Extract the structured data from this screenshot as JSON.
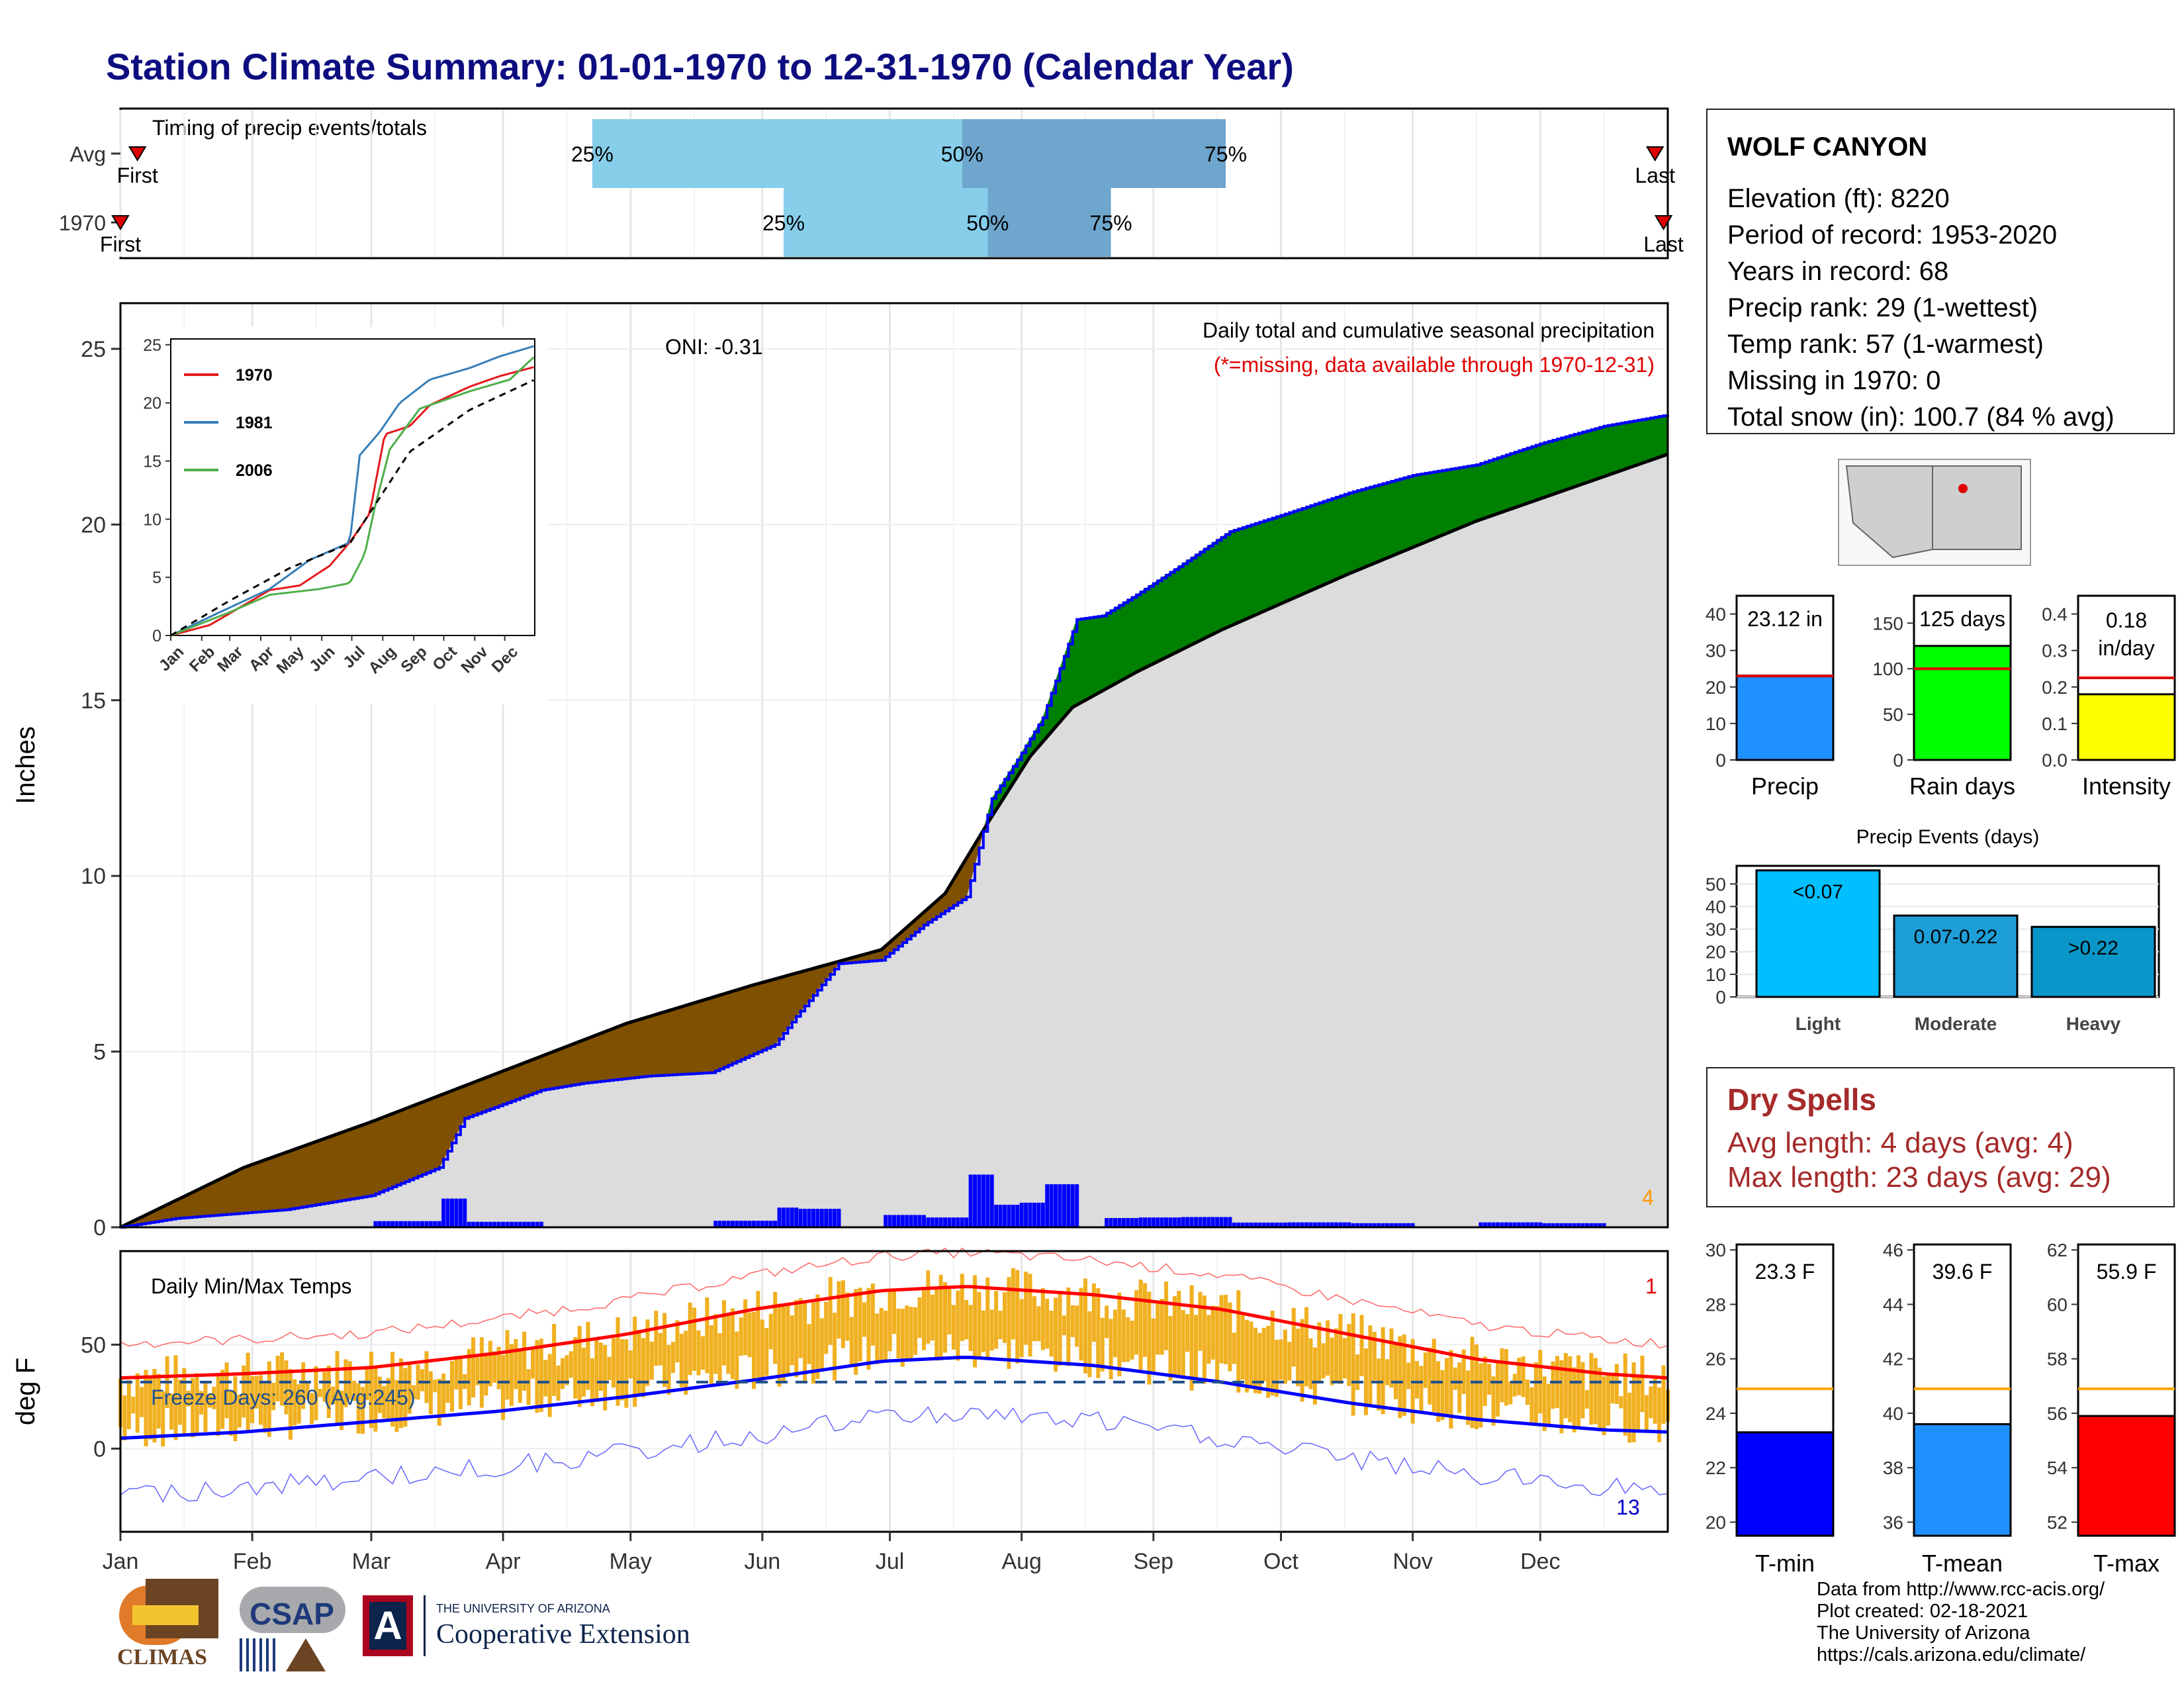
{
  "title": "Station Climate Summary: 01-01-1970 to 12-31-1970 (Calendar Year)",
  "colors": {
    "title": "#0d0d80",
    "light_blue": "#87ceeb",
    "mid_blue": "#6ea6cd",
    "above_avg": "#008000",
    "below_avg": "#7f5000",
    "cum_line": "#0000ff",
    "avg_fill": "#dcdcdc",
    "temp_bar": "#f0b020",
    "tmax_avg": "#ff0000",
    "tmin_avg": "#0000ff",
    "dry_spell": "#a52a2a"
  },
  "timing_panel": {
    "label": "Timing of precip events/totals",
    "rows": [
      {
        "name": "Avg",
        "first_label": "First",
        "last_label": "Last",
        "p25_label": "25%",
        "p50_label": "50%",
        "p75_label": "75%",
        "first_doy": 5,
        "last_doy": 362,
        "p25": 112,
        "p50": 199,
        "p75": 261
      },
      {
        "name": "1970",
        "first_label": "First",
        "last_label": "Last",
        "p25_label": "25%",
        "p50_label": "50%",
        "p75_label": "75%",
        "first_doy": 1,
        "last_doy": 364,
        "p25": 157,
        "p50": 205,
        "p75": 234
      }
    ]
  },
  "precip_panel": {
    "ylabel": "Inches",
    "ticks": [
      "0",
      "5",
      "10",
      "15",
      "20",
      "25"
    ],
    "oni_label": "ONI: -0.31",
    "legend_title": "Daily total and cumulative seasonal precipitation",
    "missing_note": "(*=missing, data available through 1970-12-31)",
    "extreme_count": "4"
  },
  "inset": {
    "ticks_y": [
      "0",
      "5",
      "10",
      "15",
      "20",
      "25"
    ],
    "months": [
      "Jan",
      "Feb",
      "Mar",
      "Apr",
      "May",
      "Jun",
      "Jul",
      "Aug",
      "Sep",
      "Oct",
      "Nov",
      "Dec"
    ],
    "legend": [
      {
        "label": "1970",
        "color": "#e41a1c"
      },
      {
        "label": "1981",
        "color": "#377eb8"
      },
      {
        "label": "2006",
        "color": "#4daf4a"
      }
    ]
  },
  "temp_panel": {
    "ylabel": "deg F",
    "ticks": [
      "0",
      "50"
    ],
    "title": "Daily Min/Max Temps",
    "freeze_label": "Freeze Days: 260 (Avg:245)",
    "count_top": "1",
    "count_bottom": "13"
  },
  "months": [
    "Jan",
    "Feb",
    "Mar",
    "Apr",
    "May",
    "Jun",
    "Jul",
    "Aug",
    "Sep",
    "Oct",
    "Nov",
    "Dec"
  ],
  "station": {
    "name": "WOLF CANYON",
    "lines": [
      "Elevation (ft): 8220",
      "Period of record: 1953-2020",
      "Years in record: 68",
      "Precip rank: 29 (1-wettest)",
      "Temp rank: 57 (1-warmest)",
      "Missing in 1970: 0",
      "Total snow (in): 100.7 (84 % avg)"
    ]
  },
  "summary_bars": [
    {
      "label": "Precip",
      "value_text": "23.12 in",
      "value": 23.12,
      "avg": 23.0,
      "ymax": 45,
      "ticks": [
        "0",
        "10",
        "20",
        "30",
        "40"
      ],
      "color": "#1e90ff"
    },
    {
      "label": "Rain days",
      "value_text": "125 days",
      "value": 125,
      "avg": 100,
      "ymax": 180,
      "ticks": [
        "0",
        "50",
        "100",
        "150"
      ],
      "color": "#00ff00"
    },
    {
      "label": "Intensity",
      "value_text": "0.18 in/day",
      "value": 0.18,
      "avg": 0.225,
      "ymax": 0.45,
      "ticks": [
        "0.0",
        "0.1",
        "0.2",
        "0.3",
        "0.4"
      ],
      "color": "#ffff00"
    }
  ],
  "precip_events": {
    "title": "Precip Events (days)",
    "ticks": [
      "0",
      "10",
      "20",
      "30",
      "40",
      "50"
    ],
    "bars": [
      {
        "label": "Light",
        "inner": "<0.07",
        "value": 56,
        "color": "#00bfff"
      },
      {
        "label": "Moderate",
        "inner": "0.07-0.22",
        "value": 36,
        "color": "#1e9ed8"
      },
      {
        "label": "Heavy",
        "inner": ">0.22",
        "value": 31,
        "color": "#0a96c8"
      }
    ]
  },
  "dry_spells": {
    "title": "Dry Spells",
    "avg_line": "Avg length: 4 days (avg: 4)",
    "max_line": "Max length: 23 days (avg: 29)"
  },
  "temp_bars": [
    {
      "label": "T-min",
      "value_text": "23.3 F",
      "value": 23.3,
      "avg": 24.9,
      "ymin": 19.5,
      "ymax": 30.2,
      "ticks": [
        "20",
        "22",
        "24",
        "26",
        "28",
        "30"
      ],
      "color": "#0000ff"
    },
    {
      "label": "T-mean",
      "value_text": "39.6 F",
      "value": 39.6,
      "avg": 40.9,
      "ymin": 35.5,
      "ymax": 46.2,
      "ticks": [
        "36",
        "38",
        "40",
        "42",
        "44",
        "46"
      ],
      "color": "#1e90ff"
    },
    {
      "label": "T-max",
      "value_text": "55.9 F",
      "value": 55.9,
      "avg": 56.9,
      "ymin": 51.5,
      "ymax": 62.2,
      "ticks": [
        "52",
        "54",
        "56",
        "58",
        "60",
        "62"
      ],
      "color": "#ff0000"
    }
  ],
  "footer": {
    "lines": [
      "Data from http://www.rcc-acis.org/",
      "Plot created: 02-18-2021",
      "The University of Arizona",
      "https://cals.arizona.edu/climate/"
    ]
  },
  "logos": {
    "climas": "CLIMAS",
    "csap": "CSAP",
    "ua_small": "THE UNIVERSITY OF ARIZONA",
    "coop": "Cooperative Extension"
  },
  "chart_data": [
    {
      "type": "area",
      "title": "Daily total and cumulative seasonal precipitation",
      "ylabel": "Inches",
      "ylim": [
        0,
        25
      ],
      "x_unit": "day of year 1970",
      "series": [
        {
          "name": "1970",
          "x": [
            1,
            14,
            40,
            60,
            76,
            82,
            100,
            110,
            125,
            140,
            155,
            160,
            170,
            180,
            190,
            200,
            206,
            212,
            218,
            226,
            232,
            240,
            250,
            262,
            275,
            290,
            305,
            320,
            335,
            350,
            365
          ],
          "y": [
            0.0,
            0.25,
            0.5,
            0.9,
            1.7,
            3.1,
            3.9,
            4.1,
            4.3,
            4.4,
            5.2,
            6.0,
            7.5,
            7.6,
            8.6,
            9.4,
            12.2,
            13.3,
            14.5,
            17.3,
            17.4,
            18.0,
            18.8,
            19.8,
            20.3,
            20.9,
            21.4,
            21.7,
            22.3,
            22.8,
            23.12
          ]
        },
        {
          "name": "Average",
          "x": [
            1,
            30,
            60,
            90,
            120,
            150,
            180,
            195,
            205,
            215,
            225,
            240,
            260,
            290,
            320,
            365
          ],
          "y": [
            0.0,
            1.7,
            3.0,
            4.4,
            5.8,
            6.9,
            7.9,
            9.5,
            11.5,
            13.4,
            14.8,
            15.8,
            17.0,
            18.6,
            20.1,
            22.0
          ]
        }
      ]
    },
    {
      "type": "line",
      "title": "",
      "months": [
        "Jan",
        "Feb",
        "Mar",
        "Apr",
        "May",
        "Jun",
        "Jul",
        "Aug",
        "Sep",
        "Oct",
        "Nov",
        "Dec"
      ],
      "ylim": [
        0,
        25
      ],
      "series": [
        {
          "name": "1970",
          "x": [
            1,
            40,
            100,
            130,
            160,
            175,
            185,
            200,
            215,
            240,
            260,
            300,
            330,
            365
          ],
          "y": [
            0,
            0.9,
            3.9,
            4.3,
            6.0,
            7.5,
            8.6,
            10.5,
            17.3,
            18.0,
            19.8,
            21.4,
            22.3,
            23.1
          ]
        },
        {
          "name": "1981",
          "x": [
            1,
            50,
            100,
            140,
            180,
            190,
            210,
            230,
            260,
            300,
            330,
            365
          ],
          "y": [
            0,
            2.0,
            4.0,
            6.5,
            8.0,
            15.5,
            17.5,
            20.0,
            22.0,
            23.0,
            24.0,
            24.9
          ]
        },
        {
          "name": "2006",
          "x": [
            1,
            60,
            100,
            150,
            180,
            195,
            205,
            220,
            250,
            300,
            340,
            365
          ],
          "y": [
            0,
            2.0,
            3.5,
            4.0,
            4.5,
            7.0,
            11.0,
            16.0,
            19.5,
            21.0,
            22.0,
            24.0
          ]
        },
        {
          "name": "Average",
          "x": [
            1,
            60,
            120,
            180,
            240,
            300,
            365
          ],
          "y": [
            0,
            3.0,
            5.8,
            7.9,
            15.8,
            19.4,
            22.0
          ]
        }
      ]
    },
    {
      "type": "line",
      "title": "Daily Min/Max Temps",
      "ylabel": "deg F",
      "ylim": [
        -40,
        95
      ],
      "series": [
        {
          "name": "Avg Tmax",
          "x": [
            1,
            30,
            60,
            90,
            120,
            150,
            180,
            200,
            230,
            260,
            290,
            320,
            350,
            365
          ],
          "y": [
            34,
            36,
            39,
            46,
            55,
            67,
            76,
            78,
            74,
            67,
            55,
            43,
            36,
            34
          ]
        },
        {
          "name": "Avg Tmin",
          "x": [
            1,
            30,
            60,
            90,
            120,
            150,
            180,
            200,
            230,
            260,
            290,
            320,
            350,
            365
          ],
          "y": [
            5,
            8,
            13,
            18,
            25,
            33,
            42,
            44,
            40,
            32,
            22,
            14,
            9,
            8
          ]
        },
        {
          "name": "Freeze",
          "x": [
            1,
            365
          ],
          "y": [
            32,
            32
          ]
        }
      ]
    }
  ]
}
